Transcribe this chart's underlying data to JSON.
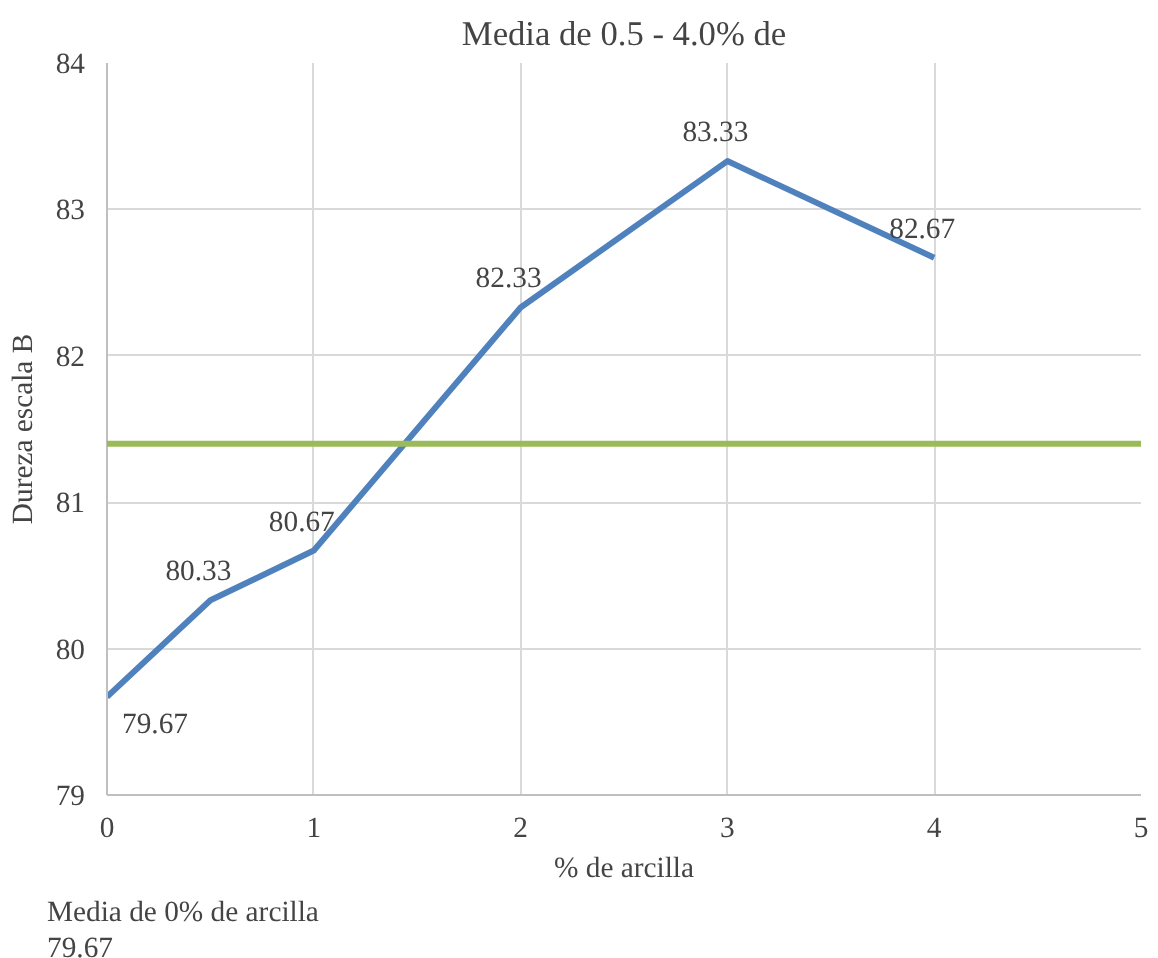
{
  "chart_data": {
    "type": "line",
    "title": "Media de 0.5 - 4.0% de",
    "xlabel": "% de arcilla",
    "ylabel": "Dureza escala B",
    "x": [
      0,
      0.5,
      1,
      2,
      3,
      4
    ],
    "series": [
      {
        "color": "#4f81bd",
        "values": [
          79.67,
          80.33,
          80.67,
          82.33,
          83.33,
          82.67
        ]
      }
    ],
    "data_labels": true,
    "xlim": [
      0,
      5
    ],
    "xticks": [
      0,
      1,
      2,
      3,
      4,
      5
    ],
    "ylim": [
      79,
      84
    ],
    "yticks": [
      79,
      80,
      81,
      82,
      83,
      84
    ],
    "grid": true,
    "marker": "none",
    "line_style": "solid",
    "ref_lines": [
      {
        "axis": "y",
        "value": 81.4,
        "color": "#9bbb59"
      }
    ],
    "annotations": [
      "Media de 0% de arcilla",
      "79.67"
    ]
  }
}
